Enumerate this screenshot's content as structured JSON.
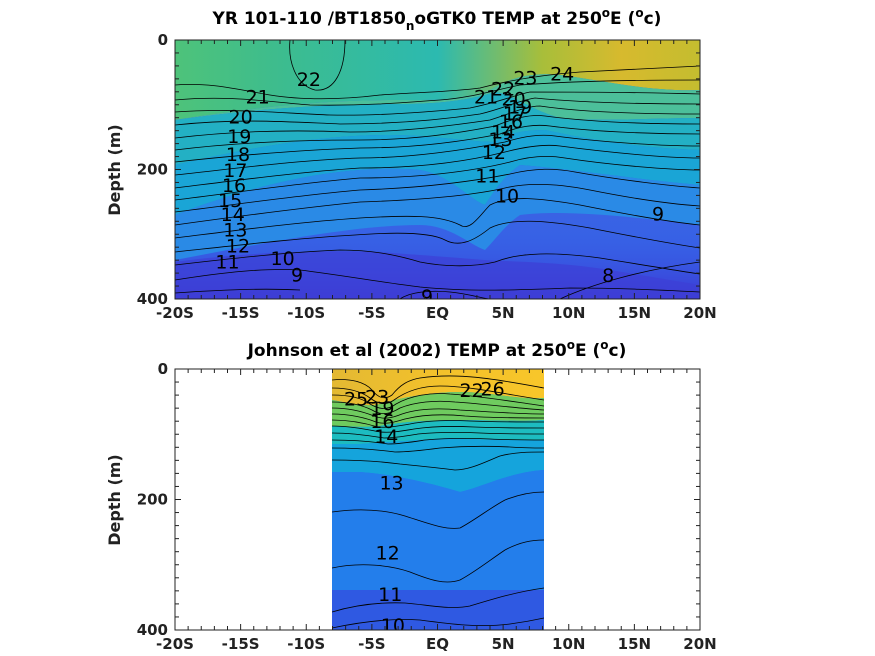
{
  "chart_data": [
    {
      "type": "heatmap",
      "title_parts": {
        "pre": "YR 101-110 /BT1850",
        "sub": "n",
        "mid": "oGTK0 TEMP at 250",
        "sup1": "o",
        "post": "E (",
        "sup2": "o",
        "end": "c)"
      },
      "ylabel": "Depth (m)",
      "xticks": [
        "-20S",
        "-15S",
        "-10S",
        "-5S",
        "EQ",
        "5N",
        "10N",
        "15N",
        "20N"
      ],
      "xtick_values": [
        -20,
        -15,
        -10,
        -5,
        0,
        5,
        10,
        15,
        20
      ],
      "xlim": [
        -20,
        20
      ],
      "yticks": [
        "0",
        "200",
        "400"
      ],
      "ytick_values": [
        0,
        200,
        400
      ],
      "ylim": [
        0,
        400
      ],
      "y_reversed": true,
      "colormap": "parula",
      "data_extent_x": [
        -20,
        20
      ],
      "contour_labels": [
        {
          "text": "22",
          "x": -9.8,
          "y": 60
        },
        {
          "text": "24",
          "x": 9.5,
          "y": 52
        },
        {
          "text": "23",
          "x": 6.7,
          "y": 58
        },
        {
          "text": "22",
          "x": 5.0,
          "y": 75
        },
        {
          "text": "21",
          "x": 3.7,
          "y": 87
        },
        {
          "text": "20",
          "x": 5.8,
          "y": 90
        },
        {
          "text": "21",
          "x": -13.7,
          "y": 87
        },
        {
          "text": "20",
          "x": -15.0,
          "y": 118
        },
        {
          "text": "19",
          "x": -15.1,
          "y": 148
        },
        {
          "text": "18",
          "x": -15.2,
          "y": 176
        },
        {
          "text": "17",
          "x": -15.4,
          "y": 201
        },
        {
          "text": "16",
          "x": -15.5,
          "y": 224
        },
        {
          "text": "15",
          "x": -15.8,
          "y": 247
        },
        {
          "text": "14",
          "x": -15.6,
          "y": 269
        },
        {
          "text": "13",
          "x": -15.4,
          "y": 293
        },
        {
          "text": "12",
          "x": -15.2,
          "y": 317
        },
        {
          "text": "11",
          "x": -16.0,
          "y": 342
        },
        {
          "text": "10",
          "x": -11.8,
          "y": 337
        },
        {
          "text": "9",
          "x": -10.7,
          "y": 362
        },
        {
          "text": "9",
          "x": -0.8,
          "y": 395
        },
        {
          "text": "19",
          "x": 6.3,
          "y": 103
        },
        {
          "text": "17",
          "x": 5.9,
          "y": 113
        },
        {
          "text": "16",
          "x": 5.6,
          "y": 125
        },
        {
          "text": "14",
          "x": 5.0,
          "y": 141
        },
        {
          "text": "13",
          "x": 4.8,
          "y": 153
        },
        {
          "text": "12",
          "x": 4.3,
          "y": 173
        },
        {
          "text": "11",
          "x": 3.8,
          "y": 209
        },
        {
          "text": "10",
          "x": 5.3,
          "y": 240
        },
        {
          "text": "9",
          "x": 16.8,
          "y": 268
        },
        {
          "text": "8",
          "x": 13.0,
          "y": 363
        }
      ]
    },
    {
      "type": "heatmap",
      "title_parts": {
        "pre": "Johnson et al (2002) TEMP at 250",
        "sup1": "o",
        "post": "E (",
        "sup2": "o",
        "end": "c)"
      },
      "ylabel": "Depth (m)",
      "xticks": [
        "-20S",
        "-15S",
        "-10S",
        "-5S",
        "EQ",
        "5N",
        "10N",
        "15N",
        "20N"
      ],
      "xtick_values": [
        -20,
        -15,
        -10,
        -5,
        0,
        5,
        10,
        15,
        20
      ],
      "xlim": [
        -20,
        20
      ],
      "yticks": [
        "0",
        "200",
        "400"
      ],
      "ytick_values": [
        0,
        200,
        400
      ],
      "ylim": [
        0,
        400
      ],
      "y_reversed": true,
      "colormap": "parula",
      "data_extent_x": [
        -8,
        8
      ],
      "contour_labels": [
        {
          "text": "25",
          "x": -6.2,
          "y": 45
        },
        {
          "text": "23",
          "x": -4.6,
          "y": 42
        },
        {
          "text": "22",
          "x": 2.6,
          "y": 32
        },
        {
          "text": "26",
          "x": 4.2,
          "y": 30
        },
        {
          "text": "19",
          "x": -4.2,
          "y": 60
        },
        {
          "text": "16",
          "x": -4.2,
          "y": 80
        },
        {
          "text": "14",
          "x": -3.9,
          "y": 103
        },
        {
          "text": "13",
          "x": -3.5,
          "y": 174
        },
        {
          "text": "12",
          "x": -3.8,
          "y": 281
        },
        {
          "text": "11",
          "x": -3.6,
          "y": 345
        },
        {
          "text": "10",
          "x": -3.4,
          "y": 392
        }
      ]
    }
  ]
}
